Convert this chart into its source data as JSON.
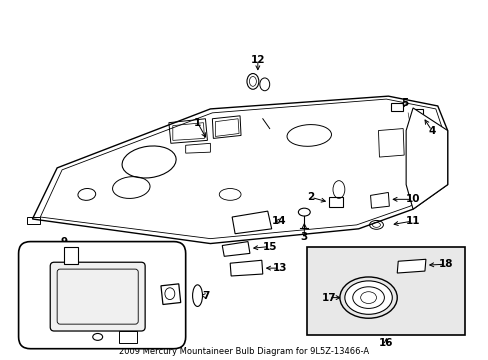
{
  "title": "2009 Mercury Mountaineer Bulb Diagram for 9L5Z-13466-A",
  "bg_color": "#ffffff",
  "line_color": "#000000",
  "fig_width": 4.89,
  "fig_height": 3.6,
  "dpi": 100
}
